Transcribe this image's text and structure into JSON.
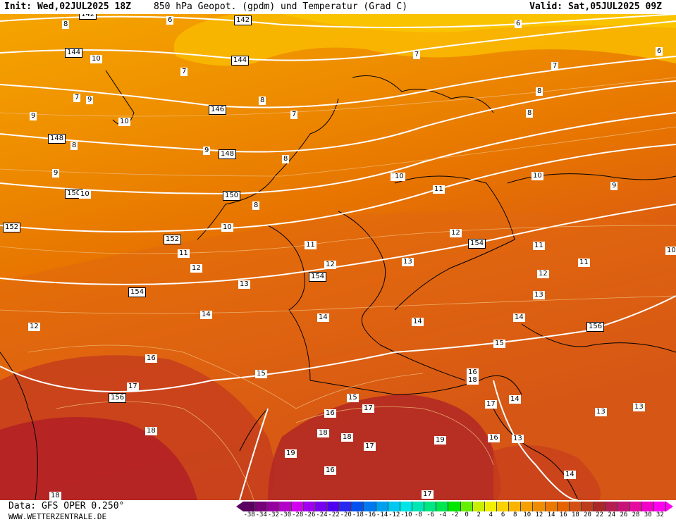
{
  "header": {
    "init": "Init: Wed,02JUL2025 18Z",
    "title": "850 hPa Geopot. (gpdm) und Temperatur (Grad C)",
    "valid": "Valid: Sat,05JUL2025 09Z"
  },
  "footer": {
    "data_source": "Data: GFS OPER 0.250°",
    "website": "WWW.WETTERZENTRALE.DE"
  },
  "colorscale": {
    "labels": [
      "-38",
      "-34",
      "-32",
      "-30",
      "-28",
      "-26",
      "-24",
      "-22",
      "-20",
      "-18",
      "-16",
      "-14",
      "-12",
      "-10",
      "-8",
      "-6",
      "-4",
      "-2",
      "0",
      "2",
      "4",
      "6",
      "8",
      "10",
      "12",
      "14",
      "16",
      "18",
      "20",
      "22",
      "24",
      "26",
      "28",
      "30",
      "32"
    ],
    "colors": [
      "#5a0060",
      "#780078",
      "#9600a0",
      "#b400c8",
      "#d200f0",
      "#a000f0",
      "#7800f0",
      "#5000f0",
      "#2828f0",
      "#0050f0",
      "#0078f0",
      "#00a0f0",
      "#00c8f0",
      "#00e6e6",
      "#00e6b4",
      "#00e682",
      "#00e650",
      "#00e600",
      "#64f000",
      "#c8f000",
      "#f0f000",
      "#fad200",
      "#fab400",
      "#f5a000",
      "#f08c00",
      "#eb7800",
      "#e66400",
      "#d25014",
      "#be3c1e",
      "#aa2828",
      "#b41e50",
      "#c81478",
      "#e60aa0",
      "#f000c8",
      "#ff00f0"
    ]
  },
  "map": {
    "geopotential_labels": [
      "142",
      "144",
      "146",
      "148",
      "150",
      "152",
      "154",
      "156"
    ],
    "temperature_labels": [
      "6",
      "7",
      "8",
      "9",
      "10",
      "11",
      "12",
      "13",
      "14",
      "15",
      "16",
      "17",
      "18",
      "19"
    ]
  }
}
